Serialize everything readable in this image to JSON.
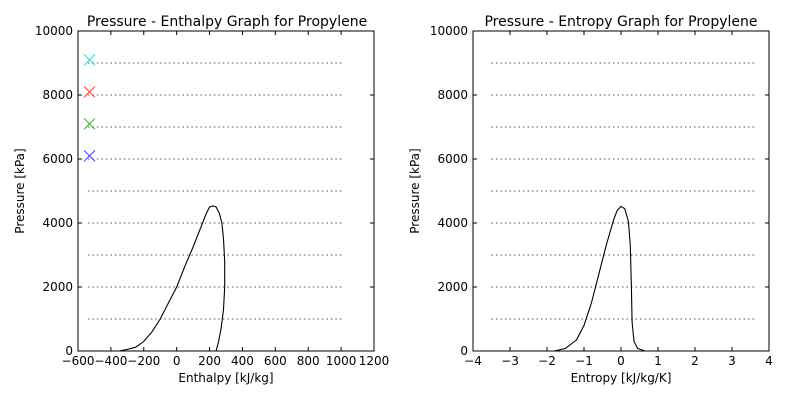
{
  "chart_data": [
    {
      "type": "line",
      "title": "Pressure - Enthalpy Graph for Propylene",
      "xlabel": "Enthalpy [kJ/kg]",
      "ylabel": "Pressure [kPa]",
      "xlim": [
        -600,
        1200
      ],
      "ylim": [
        0,
        10000
      ],
      "xticks": [
        -600,
        -400,
        -200,
        0,
        200,
        400,
        600,
        800,
        1000,
        1200
      ],
      "yticks": [
        0,
        2000,
        4000,
        6000,
        8000,
        10000
      ],
      "grid": false,
      "isobars": {
        "x_range": [
          -540,
          1020
        ],
        "pressures": [
          1000,
          2000,
          3000,
          4000,
          5000,
          6000,
          7000,
          8000,
          9000
        ],
        "style": "dotted",
        "color": "#8a8a8a"
      },
      "markers": [
        {
          "x": -530,
          "y": 6100,
          "symbol": "x",
          "color": "#3333ff"
        },
        {
          "x": -530,
          "y": 7100,
          "symbol": "x",
          "color": "#33aa33"
        },
        {
          "x": -530,
          "y": 8100,
          "symbol": "x",
          "color": "#ff3333"
        },
        {
          "x": -530,
          "y": 9100,
          "symbol": "x",
          "color": "#33cccc"
        }
      ],
      "series": [
        {
          "color": "#000000",
          "points": [
            [
              -350,
              0
            ],
            [
              -300,
              50
            ],
            [
              -250,
              120
            ],
            [
              -200,
              300
            ],
            [
              -150,
              600
            ],
            [
              -100,
              1000
            ],
            [
              -50,
              1500
            ],
            [
              0,
              2000
            ],
            [
              50,
              2650
            ],
            [
              100,
              3250
            ],
            [
              150,
              3900
            ],
            [
              180,
              4300
            ],
            [
              200,
              4500
            ],
            [
              220,
              4530
            ],
            [
              240,
              4500
            ],
            [
              260,
              4300
            ],
            [
              275,
              4000
            ],
            [
              285,
              3500
            ],
            [
              292,
              2800
            ],
            [
              292,
              2000
            ],
            [
              285,
              1300
            ],
            [
              270,
              700
            ],
            [
              255,
              300
            ],
            [
              240,
              0
            ]
          ]
        }
      ]
    },
    {
      "type": "line",
      "title": "Pressure - Entropy Graph for Propylene",
      "xlabel": "Entropy [kJ/kg/K]",
      "ylabel": "Pressure [kPa]",
      "xlim": [
        -4,
        4
      ],
      "ylim": [
        0,
        10000
      ],
      "xticks": [
        -4,
        -3,
        -2,
        -1,
        0,
        1,
        2,
        3,
        4
      ],
      "yticks": [
        0,
        2000,
        4000,
        6000,
        8000,
        10000
      ],
      "grid": false,
      "isobars": {
        "x_range": [
          -3.5,
          3.6
        ],
        "pressures": [
          1000,
          2000,
          3000,
          4000,
          5000,
          6000,
          7000,
          8000,
          9000
        ],
        "style": "dotted",
        "color": "#8a8a8a"
      },
      "series": [
        {
          "color": "#000000",
          "points": [
            [
              -1.8,
              0
            ],
            [
              -1.5,
              80
            ],
            [
              -1.2,
              350
            ],
            [
              -1.0,
              800
            ],
            [
              -0.8,
              1500
            ],
            [
              -0.6,
              2400
            ],
            [
              -0.4,
              3300
            ],
            [
              -0.2,
              4100
            ],
            [
              -0.1,
              4400
            ],
            [
              0.0,
              4520
            ],
            [
              0.1,
              4450
            ],
            [
              0.2,
              4050
            ],
            [
              0.25,
              3300
            ],
            [
              0.28,
              2000
            ],
            [
              0.3,
              900
            ],
            [
              0.35,
              300
            ],
            [
              0.45,
              80
            ],
            [
              0.65,
              0
            ]
          ]
        }
      ]
    }
  ]
}
